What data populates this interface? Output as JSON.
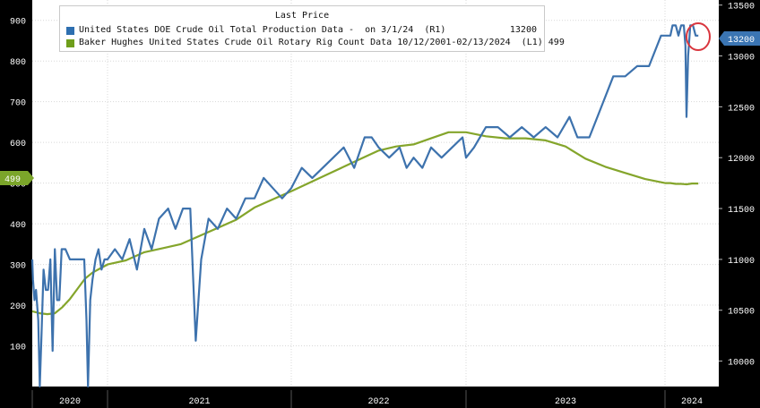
{
  "legend": {
    "title": "Last Price",
    "items": [
      {
        "name": "United States DOE Crude Oil Total Production Data -  on 3/1/24  (R1)",
        "value": "13200",
        "color": "#2e6fb0"
      },
      {
        "name": "Baker Hughes United States Crude Oil Rotary Rig Count Data 10/12/2001-02/13/2024  (L1) 499",
        "value": "",
        "color": "#6f9e1b"
      }
    ]
  },
  "colors": {
    "production": "#3d72ad",
    "rigs": "#84a52b",
    "grid": "#d8d8d8",
    "highlight": "#d9363e"
  },
  "chart_data": {
    "type": "line",
    "x_categories": [
      "2020",
      "2021",
      "2022",
      "2023",
      "2024"
    ],
    "y_left": {
      "ticks": [
        "900",
        "800",
        "700",
        "600",
        "500",
        "400",
        "300",
        "200",
        "100"
      ],
      "range": [
        0,
        950
      ],
      "last_value_label": "499"
    },
    "y_right": {
      "ticks": [
        "13500",
        "13000",
        "12500",
        "12000",
        "11500",
        "11000",
        "10500",
        "10000"
      ],
      "range": [
        9750,
        13550
      ],
      "last_value_label": "13200"
    },
    "grid": true,
    "series": [
      {
        "name": "United States DOE Crude Oil Total Production Data",
        "axis": "right",
        "points": [
          [
            2020.0,
            11000
          ],
          [
            2020.01,
            10800
          ],
          [
            2020.03,
            10600
          ],
          [
            2020.05,
            10700
          ],
          [
            2020.08,
            10400
          ],
          [
            2020.1,
            9750
          ],
          [
            2020.12,
            10200
          ],
          [
            2020.15,
            10900
          ],
          [
            2020.18,
            10700
          ],
          [
            2020.21,
            10700
          ],
          [
            2020.24,
            11000
          ],
          [
            2020.27,
            10100
          ],
          [
            2020.3,
            11100
          ],
          [
            2020.33,
            10600
          ],
          [
            2020.36,
            10600
          ],
          [
            2020.39,
            11100
          ],
          [
            2020.44,
            11100
          ],
          [
            2020.5,
            11000
          ],
          [
            2020.55,
            11000
          ],
          [
            2020.61,
            11000
          ],
          [
            2020.66,
            11000
          ],
          [
            2020.69,
            11000
          ],
          [
            2020.72,
            10400
          ],
          [
            2020.74,
            9750
          ],
          [
            2020.77,
            10600
          ],
          [
            2020.8,
            10800
          ],
          [
            2020.84,
            11000
          ],
          [
            2020.88,
            11100
          ],
          [
            2020.92,
            10900
          ],
          [
            2020.96,
            11000
          ],
          [
            2021.0,
            11000
          ],
          [
            2021.04,
            11100
          ],
          [
            2021.08,
            11000
          ],
          [
            2021.12,
            11200
          ],
          [
            2021.16,
            10900
          ],
          [
            2021.2,
            11300
          ],
          [
            2021.24,
            11100
          ],
          [
            2021.28,
            11400
          ],
          [
            2021.33,
            11500
          ],
          [
            2021.37,
            11300
          ],
          [
            2021.41,
            11500
          ],
          [
            2021.45,
            11500
          ],
          [
            2021.48,
            10200
          ],
          [
            2021.51,
            11000
          ],
          [
            2021.55,
            11400
          ],
          [
            2021.6,
            11300
          ],
          [
            2021.65,
            11500
          ],
          [
            2021.7,
            11400
          ],
          [
            2021.75,
            11600
          ],
          [
            2021.8,
            11600
          ],
          [
            2021.85,
            11800
          ],
          [
            2021.9,
            11700
          ],
          [
            2021.95,
            11600
          ],
          [
            2022.0,
            11700
          ],
          [
            2022.06,
            11900
          ],
          [
            2022.12,
            11800
          ],
          [
            2022.18,
            11900
          ],
          [
            2022.24,
            12000
          ],
          [
            2022.3,
            12100
          ],
          [
            2022.36,
            11900
          ],
          [
            2022.42,
            12200
          ],
          [
            2022.46,
            12200
          ],
          [
            2022.5,
            12100
          ],
          [
            2022.56,
            12000
          ],
          [
            2022.62,
            12100
          ],
          [
            2022.66,
            11900
          ],
          [
            2022.7,
            12000
          ],
          [
            2022.75,
            11900
          ],
          [
            2022.8,
            12100
          ],
          [
            2022.86,
            12000
          ],
          [
            2022.92,
            12100
          ],
          [
            2022.98,
            12200
          ],
          [
            2023.0,
            12000
          ],
          [
            2023.04,
            12100
          ],
          [
            2023.1,
            12300
          ],
          [
            2023.16,
            12300
          ],
          [
            2023.22,
            12200
          ],
          [
            2023.28,
            12300
          ],
          [
            2023.34,
            12200
          ],
          [
            2023.4,
            12300
          ],
          [
            2023.46,
            12200
          ],
          [
            2023.52,
            12400
          ],
          [
            2023.56,
            12200
          ],
          [
            2023.62,
            12200
          ],
          [
            2023.68,
            12500
          ],
          [
            2023.74,
            12800
          ],
          [
            2023.8,
            12800
          ],
          [
            2023.86,
            12900
          ],
          [
            2023.92,
            12900
          ],
          [
            2023.98,
            13200
          ],
          [
            2024.02,
            13200
          ],
          [
            2024.06,
            13200
          ],
          [
            2024.1,
            13200
          ],
          [
            2024.14,
            13300
          ],
          [
            2024.2,
            13300
          ],
          [
            2024.25,
            13200
          ],
          [
            2024.3,
            13300
          ],
          [
            2024.35,
            13300
          ],
          [
            2024.38,
            13100
          ],
          [
            2024.4,
            12400
          ],
          [
            2024.43,
            13000
          ],
          [
            2024.47,
            13300
          ],
          [
            2024.52,
            13300
          ],
          [
            2024.57,
            13200
          ],
          [
            2024.62,
            13200
          ]
        ]
      },
      {
        "name": "Baker Hughes United States Crude Oil Rotary Rig Count Data",
        "axis": "left",
        "points": [
          [
            2020.0,
            185
          ],
          [
            2020.1,
            180
          ],
          [
            2020.2,
            178
          ],
          [
            2020.3,
            180
          ],
          [
            2020.4,
            195
          ],
          [
            2020.5,
            215
          ],
          [
            2020.6,
            240
          ],
          [
            2020.7,
            265
          ],
          [
            2020.8,
            280
          ],
          [
            2020.9,
            290
          ],
          [
            2021.0,
            300
          ],
          [
            2021.1,
            310
          ],
          [
            2021.2,
            330
          ],
          [
            2021.3,
            340
          ],
          [
            2021.4,
            350
          ],
          [
            2021.5,
            370
          ],
          [
            2021.6,
            390
          ],
          [
            2021.7,
            410
          ],
          [
            2021.8,
            440
          ],
          [
            2021.9,
            460
          ],
          [
            2022.0,
            480
          ],
          [
            2022.1,
            500
          ],
          [
            2022.2,
            520
          ],
          [
            2022.3,
            540
          ],
          [
            2022.4,
            560
          ],
          [
            2022.5,
            580
          ],
          [
            2022.6,
            590
          ],
          [
            2022.7,
            595
          ],
          [
            2022.8,
            610
          ],
          [
            2022.9,
            625
          ],
          [
            2023.0,
            625
          ],
          [
            2023.1,
            615
          ],
          [
            2023.2,
            610
          ],
          [
            2023.3,
            610
          ],
          [
            2023.4,
            605
          ],
          [
            2023.5,
            590
          ],
          [
            2023.6,
            560
          ],
          [
            2023.7,
            540
          ],
          [
            2023.8,
            525
          ],
          [
            2023.9,
            510
          ],
          [
            2024.0,
            500
          ],
          [
            2024.1,
            500
          ],
          [
            2024.2,
            498
          ],
          [
            2024.3,
            498
          ],
          [
            2024.4,
            497
          ],
          [
            2024.5,
            499
          ],
          [
            2024.62,
            499
          ]
        ]
      }
    ]
  }
}
